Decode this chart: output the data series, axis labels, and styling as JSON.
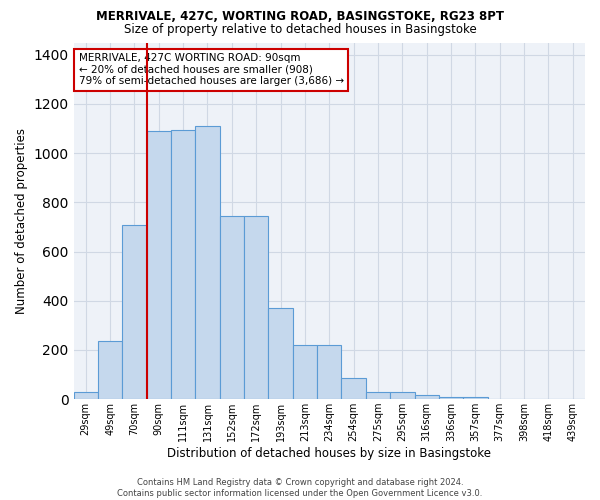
{
  "title_line1": "MERRIVALE, 427C, WORTING ROAD, BASINGSTOKE, RG23 8PT",
  "title_line2": "Size of property relative to detached houses in Basingstoke",
  "xlabel": "Distribution of detached houses by size in Basingstoke",
  "ylabel": "Number of detached properties",
  "categories": [
    "29sqm",
    "49sqm",
    "70sqm",
    "90sqm",
    "111sqm",
    "131sqm",
    "152sqm",
    "172sqm",
    "193sqm",
    "213sqm",
    "234sqm",
    "254sqm",
    "275sqm",
    "295sqm",
    "316sqm",
    "336sqm",
    "357sqm",
    "377sqm",
    "398sqm",
    "418sqm",
    "439sqm"
  ],
  "values": [
    30,
    235,
    710,
    1090,
    1095,
    1110,
    745,
    745,
    370,
    220,
    220,
    85,
    28,
    28,
    18,
    10,
    10,
    0,
    0,
    0,
    0
  ],
  "bar_color": "#c5d8ed",
  "bar_edge_color": "#5b9bd5",
  "grid_color": "#d0d8e4",
  "background_color": "#eef2f8",
  "vline_color": "#cc0000",
  "annotation_text": "MERRIVALE, 427C WORTING ROAD: 90sqm\n← 20% of detached houses are smaller (908)\n79% of semi-detached houses are larger (3,686) →",
  "annotation_box_color": "white",
  "annotation_box_edge": "#cc0000",
  "ylim": [
    0,
    1450
  ],
  "yticks": [
    0,
    200,
    400,
    600,
    800,
    1000,
    1200,
    1400
  ],
  "footer_line1": "Contains HM Land Registry data © Crown copyright and database right 2024.",
  "footer_line2": "Contains public sector information licensed under the Open Government Licence v3.0."
}
